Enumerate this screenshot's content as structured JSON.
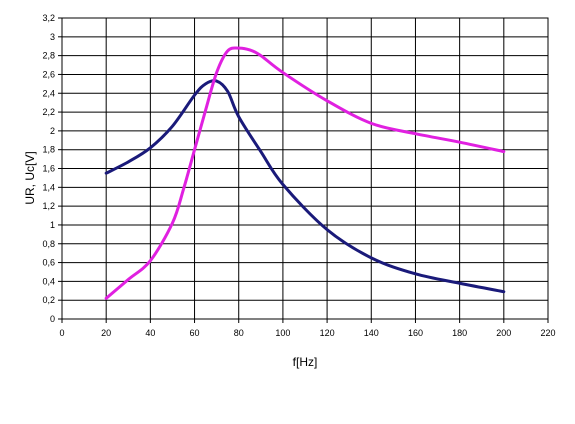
{
  "chart_data": {
    "type": "line",
    "title": "",
    "xlabel": "f[Hz]",
    "ylabel": "UR, Uc[V]",
    "xlim": [
      0,
      220
    ],
    "ylim": [
      0,
      3.2
    ],
    "x_ticks": [
      0,
      20,
      40,
      60,
      80,
      100,
      120,
      140,
      160,
      180,
      200,
      220
    ],
    "y_ticks": [
      0,
      0.2,
      0.4,
      0.6,
      0.8,
      1,
      1.2,
      1.4,
      1.6,
      1.8,
      2,
      2.2,
      2.4,
      2.6,
      2.8,
      3,
      3.2
    ],
    "x_tick_labels": [
      "0",
      "20",
      "40",
      "60",
      "80",
      "100",
      "120",
      "140",
      "160",
      "180",
      "200",
      "220"
    ],
    "y_tick_labels": [
      "0",
      "0,2",
      "0,4",
      "0,6",
      "0,8",
      "1",
      "1,2",
      "1,4",
      "1,6",
      "1,8",
      "2",
      "2,2",
      "2,4",
      "2,6",
      "2,8",
      "3",
      "3,2"
    ],
    "grid": true,
    "legend": "none",
    "series": [
      {
        "color": "#1a1a7a",
        "x": [
          20,
          30,
          40,
          50,
          60,
          65,
          70,
          75,
          80,
          90,
          100,
          120,
          140,
          160,
          180,
          200
        ],
        "y": [
          1.55,
          1.67,
          1.82,
          2.05,
          2.38,
          2.5,
          2.53,
          2.42,
          2.15,
          1.78,
          1.43,
          0.95,
          0.65,
          0.48,
          0.38,
          0.29
        ]
      },
      {
        "color": "#e020e0",
        "x": [
          20,
          30,
          40,
          50,
          55,
          60,
          65,
          70,
          75,
          80,
          85,
          90,
          100,
          120,
          140,
          160,
          180,
          200
        ],
        "y": [
          0.22,
          0.42,
          0.62,
          1.02,
          1.38,
          1.8,
          2.22,
          2.62,
          2.85,
          2.88,
          2.86,
          2.8,
          2.62,
          2.32,
          2.08,
          1.97,
          1.88,
          1.78
        ]
      }
    ]
  }
}
